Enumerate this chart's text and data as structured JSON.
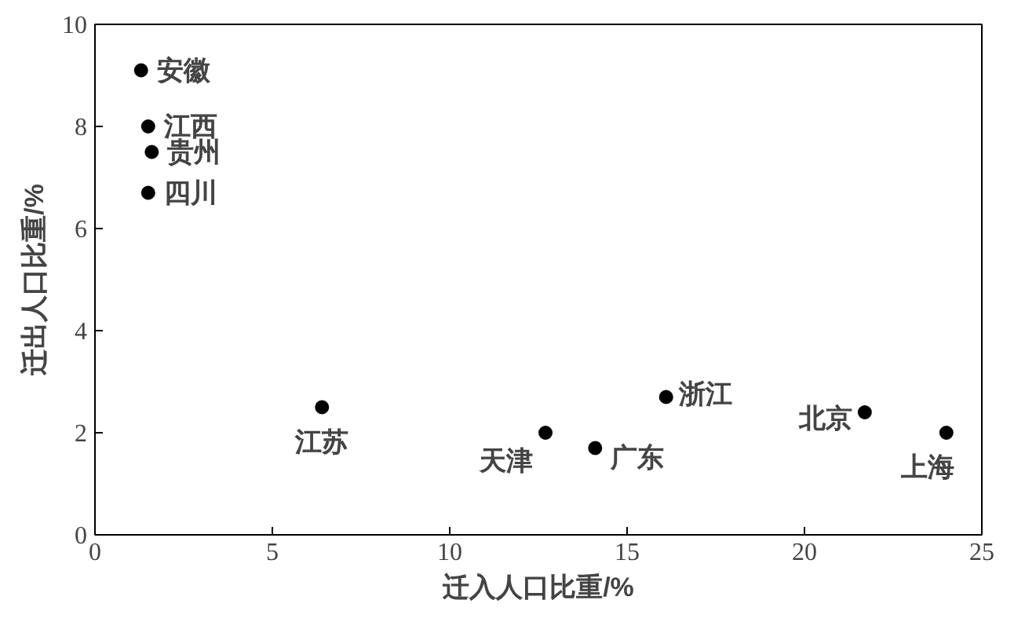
{
  "chart_data": {
    "type": "scatter",
    "xlabel": "迁入人口比重/%",
    "ylabel": "迁出人口比重/%",
    "x": [
      1.3,
      1.5,
      1.6,
      1.5,
      6.4,
      12.7,
      14.1,
      16.1,
      21.7,
      24.0
    ],
    "values": [
      9.1,
      8.0,
      7.5,
      6.7,
      2.5,
      2.0,
      1.7,
      2.7,
      2.4,
      2.0
    ],
    "color": "#000000",
    "marker": "circle",
    "grid": false,
    "xlim": [
      0,
      25
    ],
    "ylim": [
      0,
      10
    ],
    "xticks": [
      0,
      5,
      10,
      15,
      20,
      25
    ],
    "yticks": [
      0,
      2,
      4,
      6,
      8,
      10
    ],
    "annotations": [
      {
        "text": "安徽",
        "x": 1.3,
        "y": 9.1
      },
      {
        "text": "江西",
        "x": 1.5,
        "y": 8.0
      },
      {
        "text": "贵州",
        "x": 1.6,
        "y": 7.5
      },
      {
        "text": "四川",
        "x": 1.5,
        "y": 6.7
      },
      {
        "text": "江苏",
        "x": 6.4,
        "y": 2.5
      },
      {
        "text": "天津",
        "x": 12.7,
        "y": 2.0
      },
      {
        "text": "广东",
        "x": 14.1,
        "y": 1.7
      },
      {
        "text": "浙江",
        "x": 16.1,
        "y": 2.7
      },
      {
        "text": "北京",
        "x": 21.7,
        "y": 2.4
      },
      {
        "text": "上海",
        "x": 24.0,
        "y": 2.0
      }
    ]
  }
}
